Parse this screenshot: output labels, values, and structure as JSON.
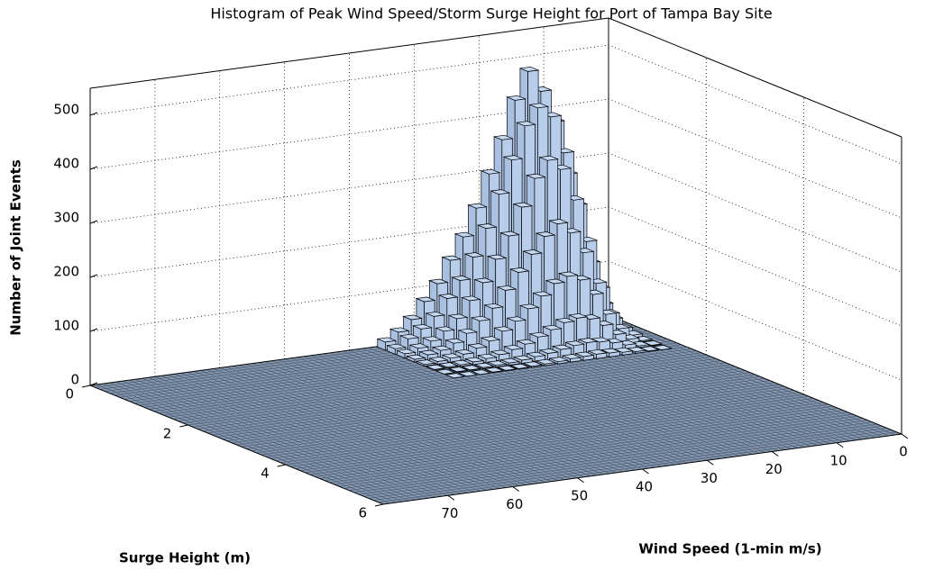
{
  "chart_data": {
    "type": "bar3d",
    "title": "Histogram of Peak Wind Speed/Storm Surge Height for Port of Tampa Bay Site",
    "xlabel": "Wind Speed (1-min m/s)",
    "ylabel": "Surge Height (m)",
    "zlabel": "Number of Joint Events",
    "xlim": [
      0,
      80
    ],
    "ylim": [
      0,
      6
    ],
    "zlim": [
      0,
      550
    ],
    "xticks": [
      0,
      10,
      20,
      30,
      40,
      50,
      60,
      70
    ],
    "yticks": [
      0,
      2,
      4,
      6
    ],
    "zticks": [
      0,
      100,
      200,
      300,
      400,
      500
    ],
    "grid": true,
    "color": "#c4d8f2",
    "x_bins": [
      2,
      4,
      6,
      8,
      10,
      12,
      14,
      16,
      18,
      20,
      22,
      24,
      26,
      28,
      30,
      32,
      34,
      36
    ],
    "y_bins": [
      0,
      0.2,
      0.4,
      0.6,
      0.8,
      1.0,
      1.2,
      1.4,
      1.6
    ],
    "values": [
      [
        60,
        150,
        280,
        380,
        440,
        480,
        430,
        360,
        300,
        240,
        190,
        150,
        110,
        80,
        50,
        30,
        15
      ],
      [
        40,
        120,
        230,
        330,
        400,
        420,
        390,
        330,
        270,
        210,
        160,
        120,
        90,
        60,
        40,
        25,
        10
      ],
      [
        20,
        80,
        170,
        250,
        310,
        330,
        300,
        250,
        200,
        160,
        120,
        90,
        60,
        40,
        25,
        15,
        8
      ],
      [
        10,
        40,
        100,
        160,
        200,
        220,
        200,
        170,
        140,
        110,
        80,
        60,
        40,
        25,
        15,
        10,
        5
      ],
      [
        5,
        20,
        50,
        90,
        120,
        130,
        120,
        100,
        80,
        60,
        45,
        30,
        20,
        12,
        8,
        5,
        3
      ],
      [
        2,
        8,
        20,
        40,
        55,
        60,
        55,
        45,
        35,
        25,
        18,
        12,
        8,
        5,
        3,
        2,
        1
      ],
      [
        1,
        3,
        8,
        15,
        20,
        22,
        20,
        16,
        12,
        9,
        6,
        4,
        3,
        2,
        1,
        1,
        0
      ],
      [
        0,
        1,
        3,
        5,
        7,
        8,
        7,
        6,
        4,
        3,
        2,
        1,
        1,
        1,
        0,
        0,
        0
      ]
    ]
  }
}
